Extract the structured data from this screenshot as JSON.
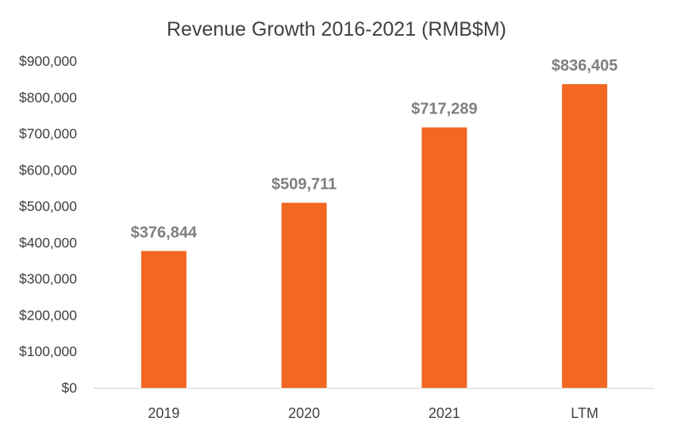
{
  "chart_data": {
    "type": "bar",
    "title": "Revenue Growth 2016-2021 (RMB$M)",
    "categories": [
      "2019",
      "2020",
      "2021",
      "LTM"
    ],
    "values": [
      376844,
      509711,
      717289,
      836405
    ],
    "value_labels": [
      "$376,844",
      "$509,711",
      "$717,289",
      "$836,405"
    ],
    "yticks": [
      "$0",
      "$100,000",
      "$200,000",
      "$300,000",
      "$400,000",
      "$500,000",
      "$600,000",
      "$700,000",
      "$800,000",
      "$900,000"
    ],
    "ylim": [
      0,
      900000
    ],
    "xlabel": "",
    "ylabel": "",
    "grid": false,
    "bar_color": "#f26722"
  }
}
